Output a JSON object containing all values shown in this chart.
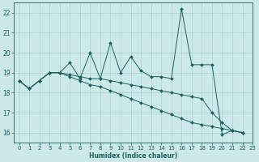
{
  "xlabel": "Humidex (Indice chaleur)",
  "bg_color": "#cce8e8",
  "grid_color": "#aad0d0",
  "line_color": "#1a6060",
  "xlim": [
    -0.5,
    23
  ],
  "ylim": [
    15.5,
    22.5
  ],
  "xticks": [
    0,
    1,
    2,
    3,
    4,
    5,
    6,
    7,
    8,
    9,
    10,
    11,
    12,
    13,
    14,
    15,
    16,
    17,
    18,
    19,
    20,
    21,
    22,
    23
  ],
  "yticks": [
    16,
    17,
    18,
    19,
    20,
    21,
    22
  ],
  "line1": [
    18.6,
    18.2,
    18.6,
    19.0,
    19.0,
    19.5,
    18.7,
    20.0,
    18.7,
    20.5,
    19.0,
    19.8,
    19.1,
    18.8,
    18.8,
    18.7,
    22.2,
    19.4,
    19.4,
    19.4,
    15.9,
    16.1,
    16.0
  ],
  "line2": [
    18.6,
    18.2,
    18.6,
    19.0,
    19.0,
    18.9,
    18.8,
    18.7,
    18.7,
    18.6,
    18.5,
    18.4,
    18.3,
    18.2,
    18.1,
    18.0,
    17.9,
    17.8,
    17.7,
    17.0,
    16.5,
    16.1,
    16.0
  ],
  "line3": [
    18.6,
    18.2,
    18.6,
    19.0,
    19.0,
    18.8,
    18.6,
    18.4,
    18.3,
    18.1,
    17.9,
    17.7,
    17.5,
    17.3,
    17.1,
    16.9,
    16.7,
    16.5,
    16.4,
    16.3,
    16.2,
    16.1,
    16.0
  ]
}
